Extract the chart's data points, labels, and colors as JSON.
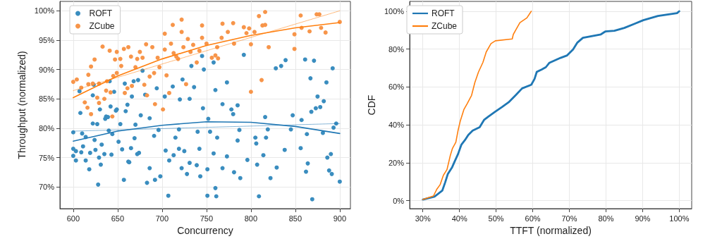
{
  "chart_data": [
    {
      "type": "scatter",
      "xlabel": "Concurrency",
      "ylabel": "Throughput (normalized)",
      "xlim": [
        585,
        912
      ],
      "xticks": [
        600,
        650,
        700,
        750,
        800,
        850,
        900
      ],
      "ylim": [
        66.3,
        101.6
      ],
      "yticks": [
        {
          "value": 70,
          "label": "70%"
        },
        {
          "value": 75,
          "label": "75%"
        },
        {
          "value": 80,
          "label": "80%"
        },
        {
          "value": 85,
          "label": "85%"
        },
        {
          "value": 90,
          "label": "90%"
        },
        {
          "value": 95,
          "label": "95%"
        },
        {
          "value": 100,
          "label": "100%"
        }
      ],
      "grid": true,
      "legend": "top left",
      "marker": "circle",
      "series": [
        {
          "name": "ROFT",
          "color": "#3a8dbf",
          "x": [
            600,
            600,
            600,
            603,
            603,
            607,
            608,
            609,
            610,
            611,
            614,
            614,
            618,
            619,
            622,
            622,
            623,
            624,
            625,
            627,
            628,
            629,
            630,
            631,
            632,
            635,
            636,
            637,
            639,
            640,
            641,
            642,
            643,
            644,
            646,
            648,
            649,
            651,
            653,
            655,
            657,
            658,
            659,
            661,
            662,
            663,
            665,
            666,
            668,
            669,
            670,
            672,
            673,
            674,
            676,
            678,
            681,
            683,
            686,
            686,
            691,
            692,
            694,
            696,
            698,
            703,
            704,
            707,
            708,
            712,
            713,
            715,
            719,
            719,
            720,
            722,
            723,
            725,
            728,
            731,
            731,
            733,
            736,
            739,
            740,
            742,
            743,
            745,
            746,
            747,
            751,
            751,
            752,
            754,
            758,
            758,
            760,
            760,
            761,
            762,
            768,
            768,
            773,
            773,
            778,
            780,
            781,
            785,
            785,
            787,
            788,
            792,
            796,
            805,
            806,
            807,
            809,
            814,
            816,
            817,
            819,
            822,
            828,
            829,
            834,
            838,
            839,
            845,
            847,
            856,
            857,
            861,
            862,
            863,
            864,
            867,
            868,
            869,
            871,
            873,
            875,
            878,
            881,
            882,
            885,
            886,
            888,
            890,
            891,
            892,
            893,
            896,
            900
          ],
          "values": [
            79.3,
            76.5,
            75.3,
            76.1,
            74.5,
            86.3,
            82.6,
            75.9,
            79.1,
            76.9,
            74.5,
            78.5,
            73.0,
            75.8,
            85.6,
            80.8,
            87.4,
            78.0,
            76.3,
            80.7,
            70.4,
            75.0,
            83.2,
            73.8,
            77.2,
            75.6,
            81.6,
            82.0,
            81.9,
            79.6,
            88.0,
            83.7,
            75.5,
            79.0,
            86.2,
            83.0,
            83.2,
            77.7,
            80.7,
            76.4,
            71.2,
            87.6,
            82.9,
            84.0,
            74.3,
            74.2,
            76.6,
            85.4,
            88.0,
            78.3,
            80.6,
            75.6,
            88.2,
            75.8,
            82.2,
            89.8,
            85.7,
            70.7,
            81.7,
            73.2,
            78.7,
            71.2,
            86.8,
            79.7,
            71.8,
            85.4,
            76.2,
            68.5,
            74.5,
            87.1,
            75.4,
            78.4,
            79.8,
            76.5,
            84.9,
            73.2,
            88.3,
            76.1,
            72.2,
            85.0,
            74.1,
            90.6,
            87.0,
            73.7,
            79.4,
            76.5,
            71.8,
            92.3,
            83.4,
            90.0,
            73.0,
            68.5,
            81.6,
            79.4,
            75.7,
            91.2,
            86.5,
            69.8,
            68.4,
            78.4,
            84.1,
            73.2,
            75.2,
            87.8,
            83.2,
            82.4,
            72.5,
            77.9,
            83.9,
            79.7,
            71.5,
            92.5,
            74.6,
            78.4,
            77.4,
            73.8,
            68.4,
            75.4,
            81.9,
            78.4,
            79.8,
            71.5,
            90.2,
            73.3,
            90.6,
            76.3,
            91.6,
            79.8,
            82.2,
            76.6,
            81.4,
            91.7,
            72.6,
            79.0,
            74.0,
            88.5,
            82.8,
            67.9,
            91.5,
            83.4,
            85.4,
            83.6,
            79.2,
            84.6,
            87.8,
            75.0,
            72.8,
            75.6,
            72.2,
            90.2,
            80.1,
            80.8,
            70.9
          ]
        },
        {
          "name": "ZCube",
          "color": "#f7954a",
          "x": [
            600,
            604,
            609,
            613,
            616,
            617,
            617,
            620,
            620,
            622,
            624,
            627,
            629,
            629,
            633,
            635,
            637,
            638,
            641,
            642,
            644,
            645,
            647,
            649,
            649,
            653,
            654,
            657,
            658,
            661,
            662,
            665,
            666,
            670,
            672,
            675,
            678,
            680,
            682,
            683,
            686,
            689,
            691,
            692,
            695,
            697,
            701,
            703,
            703,
            705,
            708,
            710,
            712,
            713,
            716,
            718,
            722,
            722,
            724,
            727,
            729,
            732,
            735,
            739,
            742,
            745,
            745,
            750,
            756,
            760,
            762,
            763,
            767,
            768,
            774,
            780,
            781,
            792,
            795,
            798,
            800,
            800,
            804,
            809,
            812,
            813,
            816,
            816,
            820,
            849,
            849,
            856,
            857,
            866,
            874,
            877,
            879,
            884,
            900
          ],
          "values": [
            87.9,
            88.3,
            86.9,
            84.4,
            83.5,
            89.1,
            87.5,
            82.4,
            90.5,
            87.6,
            91.7,
            85.2,
            84.3,
            87.6,
            93.9,
            85.0,
            86.4,
            88.0,
            93.2,
            86.1,
            82.0,
            88.9,
            91.7,
            89.4,
            93.0,
            91.8,
            90.6,
            93.5,
            86.0,
            86.8,
            93.8,
            92.2,
            87.2,
            90.4,
            91.8,
            93.0,
            92.0,
            87.4,
            94.3,
            85.6,
            88.8,
            93.8,
            89.4,
            84.1,
            92.0,
            90.4,
            83.2,
            96.1,
            93.4,
            89.0,
            86.0,
            94.4,
            97.6,
            92.8,
            92.2,
            91.8,
            98.5,
            96.4,
            93.8,
            87.5,
            95.2,
            93.0,
            94.2,
            91.2,
            93.2,
            97.5,
            95.4,
            94.4,
            92.0,
            92.4,
            93.8,
            91.9,
            95.4,
            97.8,
            96.4,
            97.9,
            94.4,
            97.2,
            96.2,
            97.0,
            86.2,
            94.3,
            96.4,
            99.1,
            88.2,
            97.5,
            99.8,
            97.6,
            93.8,
            96.0,
            93.5,
            99.2,
            97.1,
            96.5,
            99.4,
            99.4,
            97.1,
            96.3,
            98.1
          ]
        },
        {
          "type": "line",
          "marker": "none",
          "color": "#1f77b4",
          "line_style": "solid",
          "x": [
            600,
            650,
            700,
            750,
            800,
            850,
            900
          ],
          "values": [
            77.8,
            79.5,
            80.5,
            81.1,
            81.0,
            80.3,
            79.1
          ]
        },
        {
          "type": "line",
          "marker": "none",
          "color": "#1f77b4",
          "line_style": "dotted",
          "x": [
            600,
            900
          ],
          "values": [
            79.5,
            80.8
          ]
        },
        {
          "type": "line",
          "marker": "none",
          "color": "#ff7f0e",
          "line_style": "solid",
          "x": [
            600,
            650,
            700,
            750,
            800,
            850,
            900
          ],
          "values": [
            85.2,
            88.9,
            91.8,
            94.1,
            95.8,
            97.1,
            98.0
          ]
        },
        {
          "type": "line",
          "marker": "none",
          "color": "#ff7f0e",
          "line_style": "dotted",
          "x": [
            600,
            900
          ],
          "values": [
            86.4,
            100.0
          ]
        }
      ]
    },
    {
      "type": "line",
      "xlabel": "TTFT (normalized)",
      "ylabel": "CDF",
      "xlim": [
        26.4,
        103.4
      ],
      "xticks": [
        {
          "value": 30,
          "label": "30%"
        },
        {
          "value": 40,
          "label": "40%"
        },
        {
          "value": 50,
          "label": "50%"
        },
        {
          "value": 60,
          "label": "60%"
        },
        {
          "value": 70,
          "label": "70%"
        },
        {
          "value": 80,
          "label": "80%"
        },
        {
          "value": 90,
          "label": "90%"
        },
        {
          "value": 100,
          "label": "100%"
        }
      ],
      "ylim": [
        -4.2,
        105.2
      ],
      "yticks": [
        {
          "value": 0,
          "label": "0%"
        },
        {
          "value": 20,
          "label": "20%"
        },
        {
          "value": 40,
          "label": "40%"
        },
        {
          "value": 60,
          "label": "60%"
        },
        {
          "value": 80,
          "label": "80%"
        },
        {
          "value": 100,
          "label": "100%"
        }
      ],
      "grid": true,
      "legend": "top left",
      "marker": "none",
      "line_style": "solid",
      "series": [
        {
          "name": "ROFT",
          "color": "#1f77b4",
          "x": [
            30,
            33.2,
            35.3,
            36.1,
            36.8,
            38.0,
            38.7,
            39.6,
            40.5,
            41.5,
            42.4,
            43.6,
            45.5,
            46.7,
            47.9,
            49.7,
            51.6,
            53.4,
            55.3,
            57.1,
            59.6,
            60.5,
            61.1,
            62.4,
            63.6,
            64.5,
            67.6,
            69.4,
            71.0,
            72.2,
            73.7,
            78.6,
            79.8,
            82.3,
            85.0,
            87.8,
            90.2,
            94.2,
            99.4,
            100
          ],
          "values": [
            0.6,
            2.2,
            5.3,
            9.7,
            14.0,
            17.7,
            20.8,
            24.6,
            29.5,
            32.0,
            34.7,
            37.0,
            38.8,
            42.6,
            44.4,
            46.9,
            49.4,
            51.9,
            55.6,
            59.3,
            61.2,
            64.3,
            68.0,
            69.2,
            70.5,
            72.7,
            75.4,
            76.7,
            79.8,
            83.5,
            86.0,
            87.8,
            89.3,
            89.7,
            91.2,
            93.4,
            95.3,
            97.5,
            99.0,
            100
          ]
        },
        {
          "name": "ZCube",
          "color": "#ff7f0e",
          "x": [
            30,
            32.9,
            33.8,
            34.7,
            35.6,
            36.6,
            37.5,
            38.1,
            39.0,
            39.6,
            40.2,
            41.2,
            42.1,
            43.3,
            44.2,
            45.2,
            46.4,
            47.3,
            48.6,
            49.8,
            54.4,
            54.7,
            55.6,
            56.5,
            58.4,
            59.6
          ],
          "values": [
            0.6,
            2.5,
            6.0,
            8.4,
            13.4,
            16.5,
            23.9,
            27.7,
            30.8,
            37.0,
            41.9,
            48.1,
            51.2,
            55.6,
            62.4,
            68.0,
            73.0,
            78.5,
            82.9,
            84.4,
            85.4,
            87.8,
            90.9,
            94.0,
            96.5,
            100
          ]
        }
      ]
    }
  ]
}
